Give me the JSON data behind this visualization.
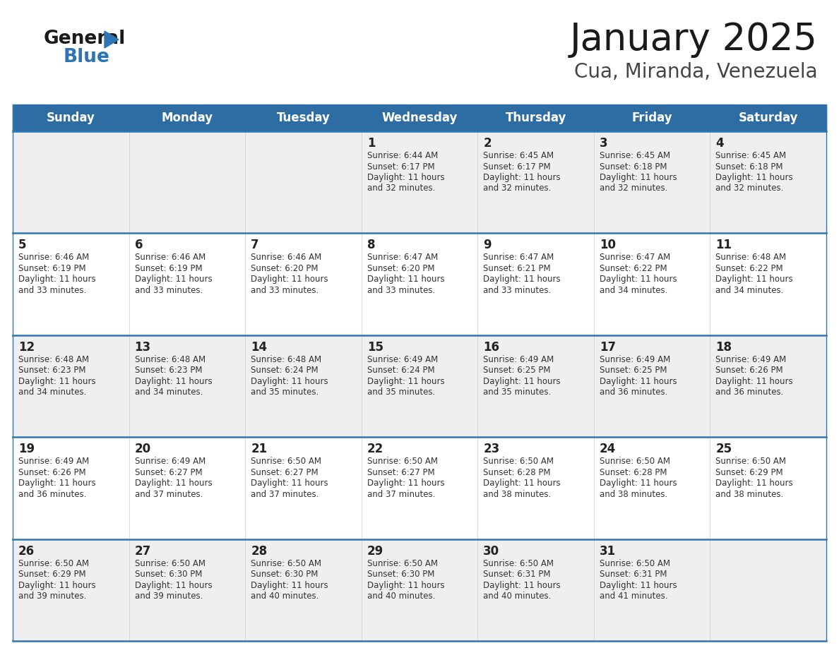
{
  "title": "January 2025",
  "subtitle": "Cua, Miranda, Venezuela",
  "header_bg": "#2E6DA4",
  "header_text_color": "#FFFFFF",
  "row_bg_odd": "#EFEFEF",
  "row_bg_even": "#FFFFFF",
  "cell_border_color": "#2E75B6",
  "day_number_color": "#222222",
  "info_text_color": "#333333",
  "days_of_week": [
    "Sunday",
    "Monday",
    "Tuesday",
    "Wednesday",
    "Thursday",
    "Friday",
    "Saturday"
  ],
  "calendar": [
    [
      {
        "day": null,
        "sunrise": null,
        "sunset": null,
        "daylight": null
      },
      {
        "day": null,
        "sunrise": null,
        "sunset": null,
        "daylight": null
      },
      {
        "day": null,
        "sunrise": null,
        "sunset": null,
        "daylight": null
      },
      {
        "day": 1,
        "sunrise": "6:44 AM",
        "sunset": "6:17 PM",
        "daylight": "11 hours\nand 32 minutes."
      },
      {
        "day": 2,
        "sunrise": "6:45 AM",
        "sunset": "6:17 PM",
        "daylight": "11 hours\nand 32 minutes."
      },
      {
        "day": 3,
        "sunrise": "6:45 AM",
        "sunset": "6:18 PM",
        "daylight": "11 hours\nand 32 minutes."
      },
      {
        "day": 4,
        "sunrise": "6:45 AM",
        "sunset": "6:18 PM",
        "daylight": "11 hours\nand 32 minutes."
      }
    ],
    [
      {
        "day": 5,
        "sunrise": "6:46 AM",
        "sunset": "6:19 PM",
        "daylight": "11 hours\nand 33 minutes."
      },
      {
        "day": 6,
        "sunrise": "6:46 AM",
        "sunset": "6:19 PM",
        "daylight": "11 hours\nand 33 minutes."
      },
      {
        "day": 7,
        "sunrise": "6:46 AM",
        "sunset": "6:20 PM",
        "daylight": "11 hours\nand 33 minutes."
      },
      {
        "day": 8,
        "sunrise": "6:47 AM",
        "sunset": "6:20 PM",
        "daylight": "11 hours\nand 33 minutes."
      },
      {
        "day": 9,
        "sunrise": "6:47 AM",
        "sunset": "6:21 PM",
        "daylight": "11 hours\nand 33 minutes."
      },
      {
        "day": 10,
        "sunrise": "6:47 AM",
        "sunset": "6:22 PM",
        "daylight": "11 hours\nand 34 minutes."
      },
      {
        "day": 11,
        "sunrise": "6:48 AM",
        "sunset": "6:22 PM",
        "daylight": "11 hours\nand 34 minutes."
      }
    ],
    [
      {
        "day": 12,
        "sunrise": "6:48 AM",
        "sunset": "6:23 PM",
        "daylight": "11 hours\nand 34 minutes."
      },
      {
        "day": 13,
        "sunrise": "6:48 AM",
        "sunset": "6:23 PM",
        "daylight": "11 hours\nand 34 minutes."
      },
      {
        "day": 14,
        "sunrise": "6:48 AM",
        "sunset": "6:24 PM",
        "daylight": "11 hours\nand 35 minutes."
      },
      {
        "day": 15,
        "sunrise": "6:49 AM",
        "sunset": "6:24 PM",
        "daylight": "11 hours\nand 35 minutes."
      },
      {
        "day": 16,
        "sunrise": "6:49 AM",
        "sunset": "6:25 PM",
        "daylight": "11 hours\nand 35 minutes."
      },
      {
        "day": 17,
        "sunrise": "6:49 AM",
        "sunset": "6:25 PM",
        "daylight": "11 hours\nand 36 minutes."
      },
      {
        "day": 18,
        "sunrise": "6:49 AM",
        "sunset": "6:26 PM",
        "daylight": "11 hours\nand 36 minutes."
      }
    ],
    [
      {
        "day": 19,
        "sunrise": "6:49 AM",
        "sunset": "6:26 PM",
        "daylight": "11 hours\nand 36 minutes."
      },
      {
        "day": 20,
        "sunrise": "6:49 AM",
        "sunset": "6:27 PM",
        "daylight": "11 hours\nand 37 minutes."
      },
      {
        "day": 21,
        "sunrise": "6:50 AM",
        "sunset": "6:27 PM",
        "daylight": "11 hours\nand 37 minutes."
      },
      {
        "day": 22,
        "sunrise": "6:50 AM",
        "sunset": "6:27 PM",
        "daylight": "11 hours\nand 37 minutes."
      },
      {
        "day": 23,
        "sunrise": "6:50 AM",
        "sunset": "6:28 PM",
        "daylight": "11 hours\nand 38 minutes."
      },
      {
        "day": 24,
        "sunrise": "6:50 AM",
        "sunset": "6:28 PM",
        "daylight": "11 hours\nand 38 minutes."
      },
      {
        "day": 25,
        "sunrise": "6:50 AM",
        "sunset": "6:29 PM",
        "daylight": "11 hours\nand 38 minutes."
      }
    ],
    [
      {
        "day": 26,
        "sunrise": "6:50 AM",
        "sunset": "6:29 PM",
        "daylight": "11 hours\nand 39 minutes."
      },
      {
        "day": 27,
        "sunrise": "6:50 AM",
        "sunset": "6:30 PM",
        "daylight": "11 hours\nand 39 minutes."
      },
      {
        "day": 28,
        "sunrise": "6:50 AM",
        "sunset": "6:30 PM",
        "daylight": "11 hours\nand 40 minutes."
      },
      {
        "day": 29,
        "sunrise": "6:50 AM",
        "sunset": "6:30 PM",
        "daylight": "11 hours\nand 40 minutes."
      },
      {
        "day": 30,
        "sunrise": "6:50 AM",
        "sunset": "6:31 PM",
        "daylight": "11 hours\nand 40 minutes."
      },
      {
        "day": 31,
        "sunrise": "6:50 AM",
        "sunset": "6:31 PM",
        "daylight": "11 hours\nand 41 minutes."
      },
      {
        "day": null,
        "sunrise": null,
        "sunset": null,
        "daylight": null
      }
    ]
  ],
  "logo_general_color": "#1a1a1a",
  "logo_blue_color": "#2E75B6",
  "logo_triangle_color": "#2E75B6",
  "title_fontsize": 38,
  "subtitle_fontsize": 20,
  "header_fontsize": 12,
  "day_num_fontsize": 12,
  "info_fontsize": 8.5
}
